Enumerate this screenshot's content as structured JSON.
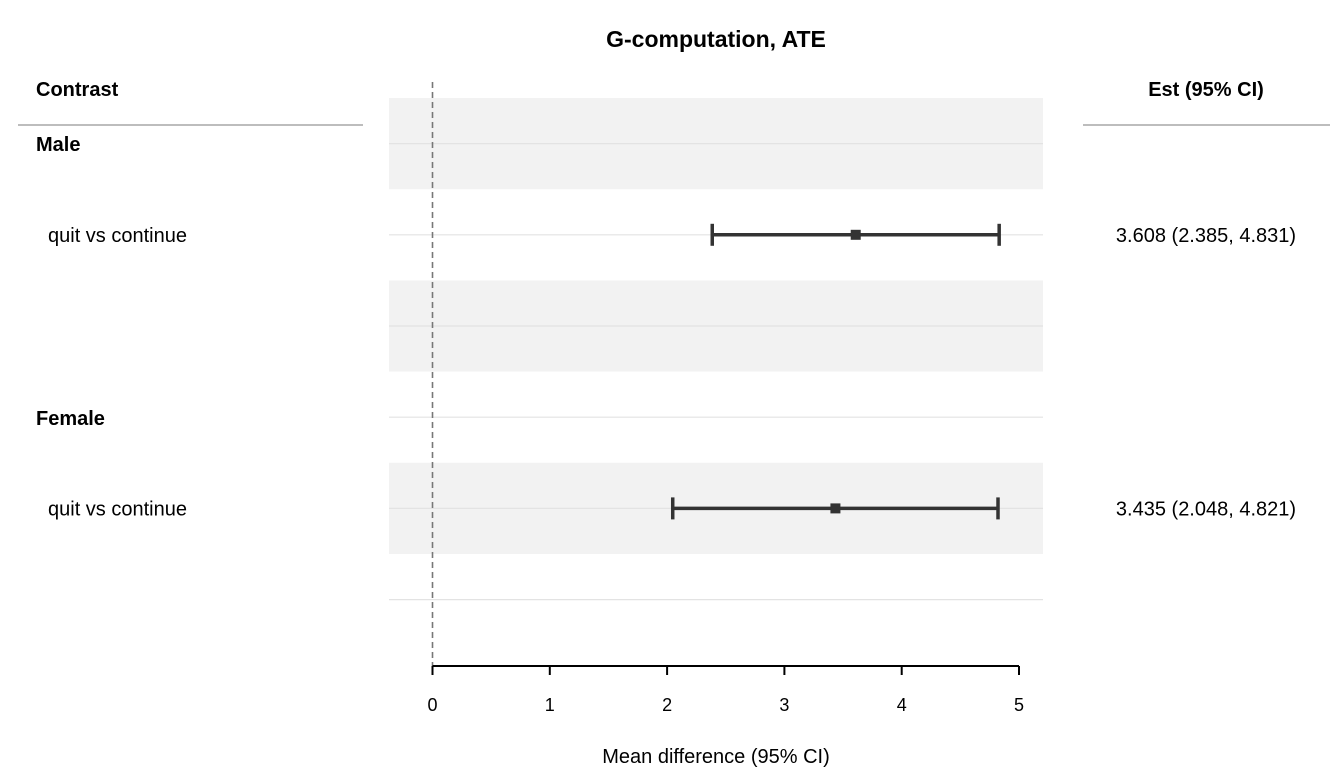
{
  "chart_data": {
    "type": "forest",
    "title": "G-computation, ATE",
    "xlabel": "Mean difference (95% CI)",
    "left_header": "Contrast",
    "right_header": "Est (95% CI)",
    "xlim": [
      0,
      5
    ],
    "xticks": [
      0,
      1,
      2,
      3,
      4,
      5
    ],
    "reference_line": 0,
    "groups": [
      {
        "name": "Male",
        "rows": [
          {
            "label": "quit vs continue",
            "est": 3.608,
            "lo": 2.385,
            "hi": 4.831,
            "text": "3.608 (2.385, 4.831)"
          }
        ]
      },
      {
        "name": "Female",
        "rows": [
          {
            "label": "quit vs continue",
            "est": 3.435,
            "lo": 2.048,
            "hi": 4.821,
            "text": "3.435 (2.048, 4.821)"
          }
        ]
      }
    ]
  },
  "colors": {
    "band": "#f2f2f2",
    "gridline": "#e3e3e3",
    "interval": "#333333",
    "reference": "#777777",
    "header_rule": "#bdbdbd"
  }
}
